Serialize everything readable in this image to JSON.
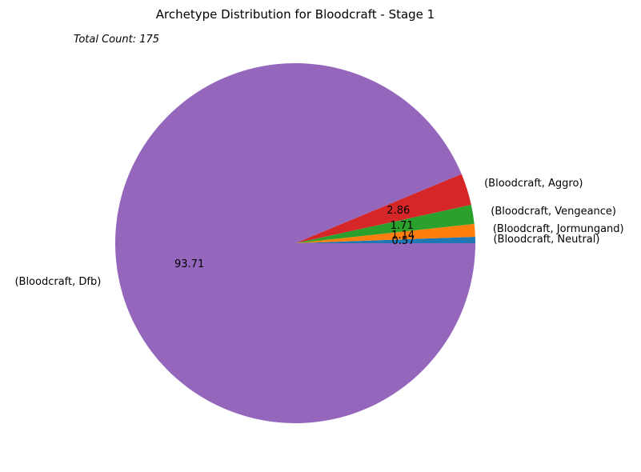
{
  "chart_data": {
    "type": "pie",
    "title": "Archetype Distribution for Bloodcraft - Stage 1",
    "annotation": "Total Count: 175",
    "slices": [
      {
        "label": "(Bloodcraft, Neutral)",
        "value": 0.57,
        "pct_label": "0.57",
        "color": "#1f77b4"
      },
      {
        "label": "(Bloodcraft, Jormungand)",
        "value": 1.14,
        "pct_label": "1.14",
        "color": "#ff7f0e"
      },
      {
        "label": "(Bloodcraft, Vengeance)",
        "value": 1.71,
        "pct_label": "1.71",
        "color": "#2ca02c"
      },
      {
        "label": "(Bloodcraft, Aggro)",
        "value": 2.86,
        "pct_label": "2.86",
        "color": "#d62728"
      },
      {
        "label": "(Bloodcraft, Dfb)",
        "value": 93.71,
        "pct_label": "93.71",
        "color": "#9467bd"
      }
    ],
    "start_angle_deg": 0,
    "direction": "counterclockwise",
    "legend": "none"
  }
}
